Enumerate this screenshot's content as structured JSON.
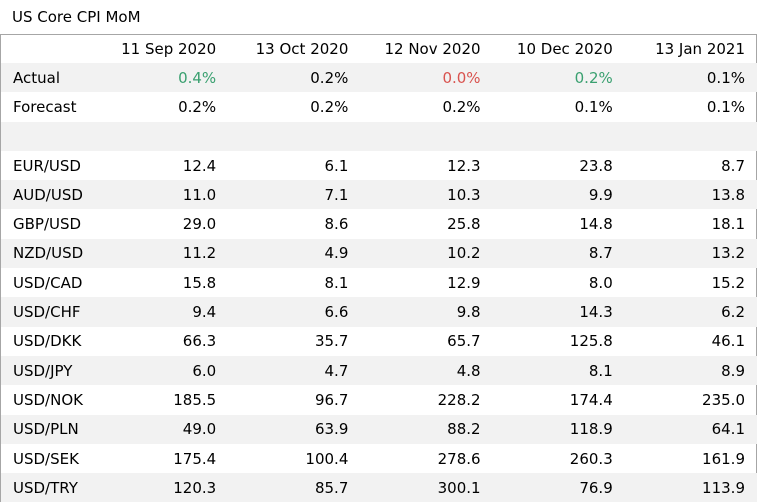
{
  "title": "US Core CPI MoM",
  "columns": [
    "11 Sep 2020",
    "13 Oct 2020",
    "12 Nov 2020",
    "10 Dec 2020",
    "13 Jan 2021"
  ],
  "actual": {
    "label": "Actual",
    "values": [
      "0.4%",
      "0.2%",
      "0.0%",
      "0.2%",
      "0.1%"
    ],
    "tone": [
      "pos",
      "none",
      "neg",
      "pos",
      "none"
    ]
  },
  "forecast": {
    "label": "Forecast",
    "values": [
      "0.2%",
      "0.2%",
      "0.2%",
      "0.1%",
      "0.1%"
    ]
  },
  "pairs": [
    {
      "label": "EUR/USD",
      "values": [
        "12.4",
        "6.1",
        "12.3",
        "23.8",
        "8.7"
      ]
    },
    {
      "label": "AUD/USD",
      "values": [
        "11.0",
        "7.1",
        "10.3",
        "9.9",
        "13.8"
      ]
    },
    {
      "label": "GBP/USD",
      "values": [
        "29.0",
        "8.6",
        "25.8",
        "14.8",
        "18.1"
      ]
    },
    {
      "label": "NZD/USD",
      "values": [
        "11.2",
        "4.9",
        "10.2",
        "8.7",
        "13.2"
      ]
    },
    {
      "label": "USD/CAD",
      "values": [
        "15.8",
        "8.1",
        "12.9",
        "8.0",
        "15.2"
      ]
    },
    {
      "label": "USD/CHF",
      "values": [
        "9.4",
        "6.6",
        "9.8",
        "14.3",
        "6.2"
      ]
    },
    {
      "label": "USD/DKK",
      "values": [
        "66.3",
        "35.7",
        "65.7",
        "125.8",
        "46.1"
      ]
    },
    {
      "label": "USD/JPY",
      "values": [
        "6.0",
        "4.7",
        "4.8",
        "8.1",
        "8.9"
      ]
    },
    {
      "label": "USD/NOK",
      "values": [
        "185.5",
        "96.7",
        "228.2",
        "174.4",
        "235.0"
      ]
    },
    {
      "label": "USD/PLN",
      "values": [
        "49.0",
        "63.9",
        "88.2",
        "118.9",
        "64.1"
      ]
    },
    {
      "label": "USD/SEK",
      "values": [
        "175.4",
        "100.4",
        "278.6",
        "260.3",
        "161.9"
      ]
    },
    {
      "label": "USD/TRY",
      "values": [
        "120.3",
        "85.7",
        "300.1",
        "76.9",
        "113.9"
      ]
    }
  ],
  "colors": {
    "positive": "#3aa070",
    "negative": "#d9534f",
    "band": "#f2f2f2",
    "border": "#a6a6a6"
  }
}
